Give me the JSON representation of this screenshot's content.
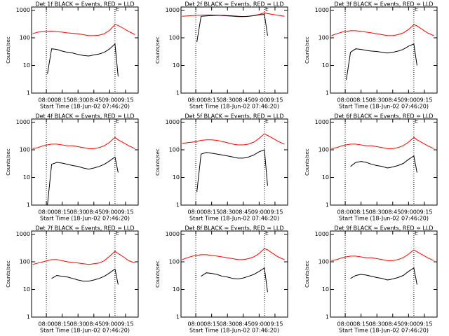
{
  "chart_data": [
    {
      "type": "line",
      "title": "Det 1f BLACK = Events, RED = LLD",
      "xlabel": "Start Time (18-Jun-02 07:46:20)",
      "ylabel": "Counts/sec",
      "log_y": true,
      "xlim": [
        "07:46",
        "09:27"
      ],
      "xticks": [
        "08:00",
        "08:15",
        "08:30",
        "08:45",
        "09:00",
        "09:15"
      ],
      "ylim": [
        1,
        1300
      ],
      "yticks": [
        1,
        10,
        100,
        1000
      ],
      "vlines": [
        "08:00",
        "09:05"
      ],
      "annotations": [
        {
          "x": "09:05",
          "label": "E"
        }
      ],
      "x": [
        "07:47",
        "07:52",
        "07:57",
        "08:01",
        "08:05",
        "08:10",
        "08:15",
        "08:20",
        "08:25",
        "08:30",
        "08:35",
        "08:40",
        "08:45",
        "08:50",
        "08:55",
        "09:00",
        "09:05",
        "09:08",
        "09:13",
        "09:18",
        "09:24"
      ],
      "series": [
        {
          "color": "#ff0000",
          "values": [
            140,
            160,
            165,
            170,
            175,
            165,
            160,
            150,
            145,
            140,
            130,
            120,
            120,
            125,
            140,
            190,
            300,
            280,
            220,
            170,
            130
          ]
        },
        {
          "color": "#000000",
          "values": [
            null,
            null,
            null,
            5,
            40,
            38,
            33,
            30,
            28,
            25,
            23,
            22,
            24,
            26,
            30,
            40,
            60,
            4,
            null,
            null,
            null
          ]
        }
      ]
    },
    {
      "type": "line",
      "title": "Det 2f BLACK = Events, RED = LLD",
      "xlabel": "Start Time (18-Jun-02 07:46:20)",
      "ylabel": "Counts/sec",
      "log_y": true,
      "xlim": [
        "07:46",
        "09:27"
      ],
      "xticks": [
        "08:00",
        "08:15",
        "08:30",
        "08:45",
        "09:00",
        "09:15"
      ],
      "ylim": [
        1,
        1300
      ],
      "yticks": [
        1,
        10,
        100,
        1000
      ],
      "vlines": [
        "08:00",
        "09:05"
      ],
      "annotations": [
        {
          "x": "09:05",
          "label": "E"
        }
      ],
      "x": [
        "07:47",
        "07:52",
        "07:57",
        "08:01",
        "08:05",
        "08:10",
        "08:15",
        "08:20",
        "08:25",
        "08:30",
        "08:35",
        "08:40",
        "08:45",
        "08:50",
        "08:55",
        "09:00",
        "09:05",
        "09:08",
        "09:13",
        "09:18",
        "09:24"
      ],
      "series": [
        {
          "color": "#ff0000",
          "values": [
            600,
            620,
            640,
            650,
            660,
            670,
            670,
            660,
            640,
            620,
            600,
            580,
            580,
            600,
            640,
            700,
            800,
            750,
            700,
            650,
            600
          ]
        },
        {
          "color": "#000000",
          "values": [
            null,
            null,
            null,
            70,
            600,
            620,
            640,
            650,
            650,
            640,
            620,
            600,
            590,
            600,
            630,
            680,
            700,
            120,
            null,
            null,
            null
          ]
        }
      ]
    },
    {
      "type": "line",
      "title": "Det 3f BLACK = Events, RED = LLD",
      "xlabel": "Start Time (18-Jun-02 07:46:20)",
      "ylabel": "Counts/sec",
      "log_y": true,
      "xlim": [
        "07:46",
        "09:27"
      ],
      "xticks": [
        "08:00",
        "08:15",
        "08:30",
        "08:45",
        "09:00",
        "09:15"
      ],
      "ylim": [
        1,
        1300
      ],
      "yticks": [
        1,
        10,
        100,
        1000
      ],
      "vlines": [
        "08:00",
        "09:05"
      ],
      "annotations": [
        {
          "x": "09:05",
          "label": "E"
        }
      ],
      "x": [
        "07:47",
        "07:52",
        "07:57",
        "08:01",
        "08:05",
        "08:10",
        "08:15",
        "08:20",
        "08:25",
        "08:30",
        "08:35",
        "08:40",
        "08:45",
        "08:50",
        "08:55",
        "09:00",
        "09:05",
        "09:08",
        "09:13",
        "09:18",
        "09:24"
      ],
      "series": [
        {
          "color": "#ff0000",
          "values": [
            120,
            140,
            160,
            170,
            180,
            180,
            170,
            160,
            150,
            140,
            130,
            120,
            120,
            130,
            150,
            200,
            300,
            270,
            200,
            150,
            120
          ]
        },
        {
          "color": "#000000",
          "values": [
            null,
            null,
            null,
            3,
            30,
            40,
            38,
            35,
            33,
            32,
            30,
            28,
            30,
            33,
            38,
            50,
            60,
            10,
            null,
            null,
            null
          ]
        }
      ]
    },
    {
      "type": "line",
      "title": "Det 4f BLACK = Events, RED = LLD",
      "xlabel": "Start Time (18-Jun-02 07:46:20)",
      "ylabel": "Counts/sec",
      "log_y": true,
      "xlim": [
        "07:46",
        "09:27"
      ],
      "xticks": [
        "08:00",
        "08:15",
        "08:30",
        "08:45",
        "09:00",
        "09:15"
      ],
      "ylim": [
        1,
        1300
      ],
      "yticks": [
        1,
        10,
        100,
        1000
      ],
      "vlines": [
        "08:00",
        "09:05"
      ],
      "annotations": [
        {
          "x": "09:05",
          "label": "E"
        }
      ],
      "x": [
        "07:47",
        "07:52",
        "07:57",
        "08:01",
        "08:05",
        "08:10",
        "08:15",
        "08:20",
        "08:25",
        "08:30",
        "08:35",
        "08:40",
        "08:45",
        "08:50",
        "08:55",
        "09:00",
        "09:05",
        "09:08",
        "09:13",
        "09:18",
        "09:24"
      ],
      "series": [
        {
          "color": "#ff0000",
          "values": [
            110,
            120,
            140,
            150,
            160,
            160,
            150,
            140,
            140,
            130,
            120,
            110,
            110,
            120,
            140,
            190,
            280,
            230,
            180,
            140,
            110
          ]
        },
        {
          "color": "#000000",
          "values": [
            null,
            null,
            null,
            1,
            30,
            35,
            33,
            30,
            27,
            25,
            22,
            20,
            22,
            25,
            30,
            40,
            55,
            15,
            null,
            null,
            null
          ]
        }
      ]
    },
    {
      "type": "line",
      "title": "Det 5f BLACK = Events, RED = LLD",
      "xlabel": "Start Time (18-Jun-02 07:46:20)",
      "ylabel": "Counts/sec",
      "log_y": true,
      "xlim": [
        "07:46",
        "09:27"
      ],
      "xticks": [
        "08:00",
        "08:15",
        "08:30",
        "08:45",
        "09:00",
        "09:15"
      ],
      "ylim": [
        1,
        1300
      ],
      "yticks": [
        1,
        10,
        100,
        1000
      ],
      "vlines": [
        "08:00",
        "09:05"
      ],
      "annotations": [
        {
          "x": "09:05",
          "label": "E"
        }
      ],
      "x": [
        "07:47",
        "07:52",
        "07:57",
        "08:01",
        "08:05",
        "08:10",
        "08:15",
        "08:20",
        "08:25",
        "08:30",
        "08:35",
        "08:40",
        "08:45",
        "08:50",
        "08:55",
        "09:00",
        "09:05",
        "09:08",
        "09:13",
        "09:18",
        "09:24"
      ],
      "series": [
        {
          "color": "#ff0000",
          "values": [
            170,
            180,
            190,
            200,
            220,
            230,
            230,
            220,
            200,
            180,
            160,
            150,
            150,
            160,
            190,
            260,
            380,
            330,
            260,
            200,
            160
          ]
        },
        {
          "color": "#000000",
          "values": [
            null,
            null,
            null,
            3,
            70,
            80,
            75,
            70,
            65,
            60,
            55,
            50,
            50,
            55,
            65,
            85,
            100,
            5,
            null,
            null,
            null
          ]
        }
      ]
    },
    {
      "type": "line",
      "title": "Det 6f BLACK = Events, RED = LLD",
      "xlabel": "Start Time (18-Jun-02 07:46:20)",
      "ylabel": "Counts/sec",
      "log_y": true,
      "xlim": [
        "07:46",
        "09:27"
      ],
      "xticks": [
        "08:00",
        "08:15",
        "08:30",
        "08:45",
        "09:00",
        "09:15"
      ],
      "ylim": [
        1,
        1300
      ],
      "yticks": [
        1,
        10,
        100,
        1000
      ],
      "vlines": [
        "08:00",
        "09:05"
      ],
      "annotations": [
        {
          "x": "09:05",
          "label": "E"
        }
      ],
      "x": [
        "07:47",
        "07:52",
        "07:57",
        "08:01",
        "08:05",
        "08:10",
        "08:15",
        "08:20",
        "08:25",
        "08:30",
        "08:35",
        "08:40",
        "08:45",
        "08:50",
        "08:55",
        "09:00",
        "09:05",
        "09:08",
        "09:13",
        "09:18",
        "09:24"
      ],
      "series": [
        {
          "color": "#ff0000",
          "values": [
            110,
            120,
            140,
            150,
            160,
            160,
            150,
            140,
            140,
            130,
            120,
            110,
            110,
            120,
            140,
            190,
            280,
            230,
            180,
            140,
            110
          ]
        },
        {
          "color": "#000000",
          "values": [
            null,
            null,
            null,
            null,
            25,
            35,
            38,
            35,
            30,
            27,
            25,
            22,
            24,
            27,
            32,
            45,
            60,
            15,
            null,
            null,
            null
          ]
        }
      ]
    },
    {
      "type": "line",
      "title": "Det 7f BLACK = Events, RED = LLD",
      "xlabel": "Start Time (18-Jun-02 07:46:20)",
      "ylabel": "Counts/sec",
      "log_y": true,
      "xlim": [
        "07:46",
        "09:27"
      ],
      "xticks": [
        "08:00",
        "08:15",
        "08:30",
        "08:45",
        "09:00",
        "09:15"
      ],
      "ylim": [
        1,
        1300
      ],
      "yticks": [
        1,
        10,
        100,
        1000
      ],
      "vlines": [
        "08:00",
        "09:05"
      ],
      "annotations": [
        {
          "x": "09:05",
          "label": "E"
        }
      ],
      "x": [
        "07:47",
        "07:52",
        "07:57",
        "08:01",
        "08:05",
        "08:10",
        "08:15",
        "08:20",
        "08:25",
        "08:30",
        "08:35",
        "08:40",
        "08:45",
        "08:50",
        "08:55",
        "09:00",
        "09:05",
        "09:08",
        "09:13",
        "09:18",
        "09:24"
      ],
      "series": [
        {
          "color": "#ff0000",
          "values": [
            80,
            90,
            100,
            110,
            120,
            120,
            110,
            100,
            95,
            90,
            85,
            80,
            85,
            90,
            110,
            160,
            240,
            200,
            150,
            110,
            90
          ]
        },
        {
          "color": "#000000",
          "values": [
            null,
            null,
            null,
            null,
            25,
            32,
            30,
            28,
            25,
            22,
            20,
            20,
            22,
            25,
            30,
            40,
            55,
            15,
            null,
            null,
            null
          ]
        }
      ]
    },
    {
      "type": "line",
      "title": "Det 8f BLACK = Events, RED = LLD",
      "xlabel": "Start Time (18-Jun-02 07:46:20)",
      "ylabel": "Counts/sec",
      "log_y": true,
      "xlim": [
        "07:46",
        "09:27"
      ],
      "xticks": [
        "08:00",
        "08:15",
        "08:30",
        "08:45",
        "09:00",
        "09:15"
      ],
      "ylim": [
        1,
        1300
      ],
      "yticks": [
        1,
        10,
        100,
        1000
      ],
      "vlines": [
        "08:00",
        "09:05"
      ],
      "annotations": [
        {
          "x": "09:05",
          "label": "E"
        }
      ],
      "x": [
        "07:47",
        "07:52",
        "07:57",
        "08:01",
        "08:05",
        "08:10",
        "08:15",
        "08:20",
        "08:25",
        "08:30",
        "08:35",
        "08:40",
        "08:45",
        "08:50",
        "08:55",
        "09:00",
        "09:05",
        "09:08",
        "09:13",
        "09:18",
        "09:24"
      ],
      "series": [
        {
          "color": "#ff0000",
          "values": [
            120,
            140,
            160,
            170,
            180,
            180,
            170,
            160,
            150,
            140,
            130,
            120,
            120,
            130,
            150,
            200,
            300,
            270,
            200,
            150,
            120
          ]
        },
        {
          "color": "#000000",
          "values": [
            null,
            null,
            null,
            null,
            30,
            40,
            38,
            35,
            30,
            28,
            25,
            24,
            26,
            30,
            35,
            45,
            60,
            8,
            null,
            null,
            null
          ]
        }
      ]
    },
    {
      "type": "line",
      "title": "Det 9f BLACK = Events, RED = LLD",
      "xlabel": "Start Time (18-Jun-02 07:46:20)",
      "ylabel": "Counts/sec",
      "log_y": true,
      "xlim": [
        "07:46",
        "09:27"
      ],
      "xticks": [
        "08:00",
        "08:15",
        "08:30",
        "08:45",
        "09:00",
        "09:15"
      ],
      "ylim": [
        1,
        1300
      ],
      "yticks": [
        1,
        10,
        100,
        1000
      ],
      "vlines": [
        "08:00",
        "09:05"
      ],
      "annotations": [
        {
          "x": "09:05",
          "label": "E"
        }
      ],
      "x": [
        "07:47",
        "07:52",
        "07:57",
        "08:01",
        "08:05",
        "08:10",
        "08:15",
        "08:20",
        "08:25",
        "08:30",
        "08:35",
        "08:40",
        "08:45",
        "08:50",
        "08:55",
        "09:00",
        "09:05",
        "09:08",
        "09:13",
        "09:18",
        "09:24"
      ],
      "series": [
        {
          "color": "#ff0000",
          "values": [
            110,
            120,
            140,
            150,
            160,
            160,
            150,
            140,
            140,
            130,
            120,
            110,
            110,
            120,
            140,
            190,
            270,
            230,
            180,
            140,
            110
          ]
        },
        {
          "color": "#000000",
          "values": [
            null,
            null,
            null,
            null,
            25,
            32,
            35,
            33,
            30,
            27,
            25,
            22,
            24,
            27,
            32,
            45,
            60,
            15,
            null,
            null,
            null
          ]
        }
      ]
    }
  ]
}
